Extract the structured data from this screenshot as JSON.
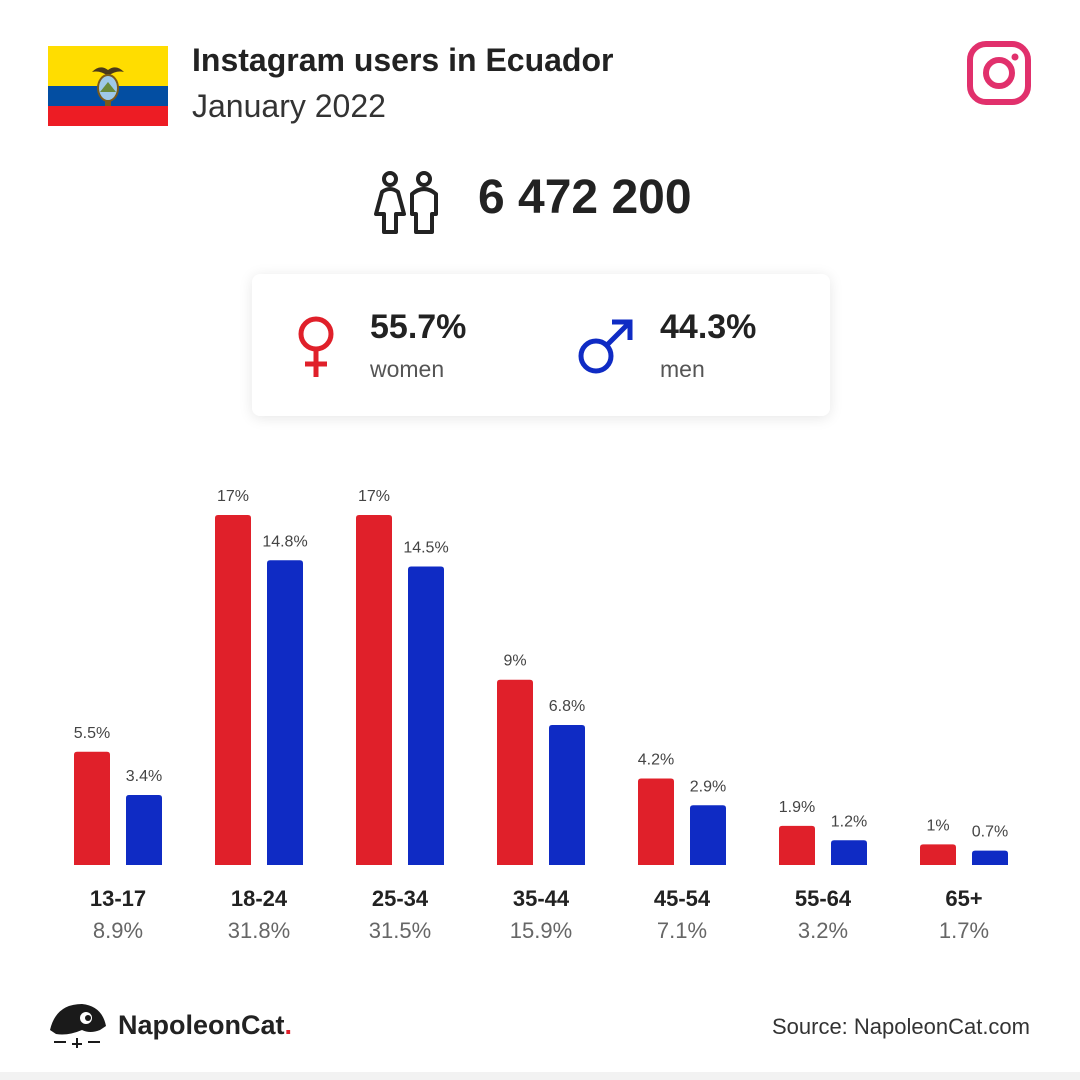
{
  "header": {
    "title": "Instagram users in Ecuador",
    "subtitle": "January 2022"
  },
  "icons": {
    "flag": "ecuador-flag-icon",
    "platform": "instagram-icon",
    "users": "people-icon",
    "female": "female-symbol-icon",
    "male": "male-symbol-icon",
    "logo": "napoleoncat-logo-icon"
  },
  "flag_colors": [
    "#ffdd00",
    "#034ea2",
    "#ed1c24"
  ],
  "total": {
    "value": "6 472 200"
  },
  "gender": {
    "women": {
      "percent": "55.7%",
      "label": "women",
      "color": "#e0202a"
    },
    "men": {
      "percent": "44.3%",
      "label": "men",
      "color": "#0f2bc4"
    }
  },
  "chart_data": {
    "type": "bar",
    "categories": [
      "13-17",
      "18-24",
      "25-34",
      "35-44",
      "45-54",
      "55-64",
      "65+"
    ],
    "category_totals": [
      "8.9%",
      "31.8%",
      "31.5%",
      "15.9%",
      "7.1%",
      "3.2%",
      "1.7%"
    ],
    "series": [
      {
        "color": "#e0202a",
        "values": [
          5.5,
          17,
          17,
          9,
          4.2,
          1.9,
          1
        ],
        "labels": [
          "5.5%",
          "17%",
          "17%",
          "9%",
          "4.2%",
          "1.9%",
          "1%"
        ]
      },
      {
        "color": "#0f2bc4",
        "values": [
          3.4,
          14.8,
          14.5,
          6.8,
          2.9,
          1.2,
          0.7
        ],
        "labels": [
          "3.4%",
          "14.8%",
          "14.5%",
          "6.8%",
          "2.9%",
          "1.2%",
          "0.7%"
        ]
      }
    ],
    "ylim": [
      0,
      17
    ],
    "grid": false,
    "legend": "none"
  },
  "footer": {
    "brand": "NapoleonCat",
    "brand_dot": ".",
    "source": "Source: NapoleonCat.com"
  }
}
